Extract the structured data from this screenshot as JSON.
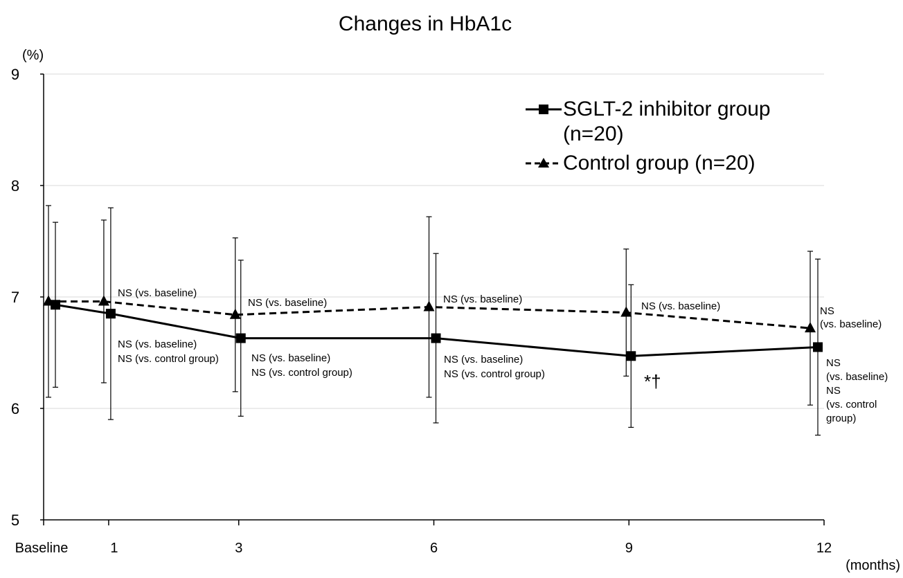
{
  "chart_data": {
    "type": "line",
    "title": "Changes in HbA1c",
    "y_unit_label": "(%)",
    "x_unit_label": "(months)",
    "x": [
      0,
      1,
      3,
      6,
      9,
      12
    ],
    "xticks": [
      {
        "value": 0,
        "label": "Baseline"
      },
      1,
      3,
      6,
      9,
      12
    ],
    "xlim": [
      0,
      12
    ],
    "ylim": [
      5,
      9
    ],
    "yticks": [
      5,
      6,
      7,
      8,
      9
    ],
    "grid": true,
    "legend": "upper right",
    "series": [
      {
        "name": "SGLT-2 inhibitor group (n=20)",
        "color": "#000000",
        "marker": "square",
        "dash": false,
        "values": [
          6.93,
          6.85,
          6.63,
          6.63,
          6.47,
          6.55
        ],
        "errors": [
          0.74,
          0.95,
          0.7,
          0.76,
          0.64,
          0.79
        ]
      },
      {
        "name": "Control group (n=20)",
        "color": "#000000",
        "marker": "triangle",
        "dash": true,
        "values": [
          6.96,
          6.96,
          6.84,
          6.91,
          6.86,
          6.72
        ],
        "errors": [
          0.86,
          0.73,
          0.69,
          0.81,
          0.57,
          0.69
        ]
      }
    ],
    "annotations": [
      [
        "NS (vs. baseline)"
      ],
      [
        "NS (vs. baseline)",
        "NS (vs. control group)"
      ],
      [
        "NS (vs. baseline)"
      ],
      [
        "NS (vs. baseline)",
        "NS (vs. control group)"
      ],
      [
        "NS (vs. baseline)"
      ],
      [
        "NS (vs. baseline)",
        "NS (vs. control group)"
      ],
      [
        "NS (vs. baseline)"
      ],
      [
        "*†"
      ],
      [
        "NS",
        "(vs. baseline)"
      ],
      [
        "NS",
        "(vs. baseline)",
        "NS",
        "(vs. control",
        "group)"
      ]
    ]
  }
}
